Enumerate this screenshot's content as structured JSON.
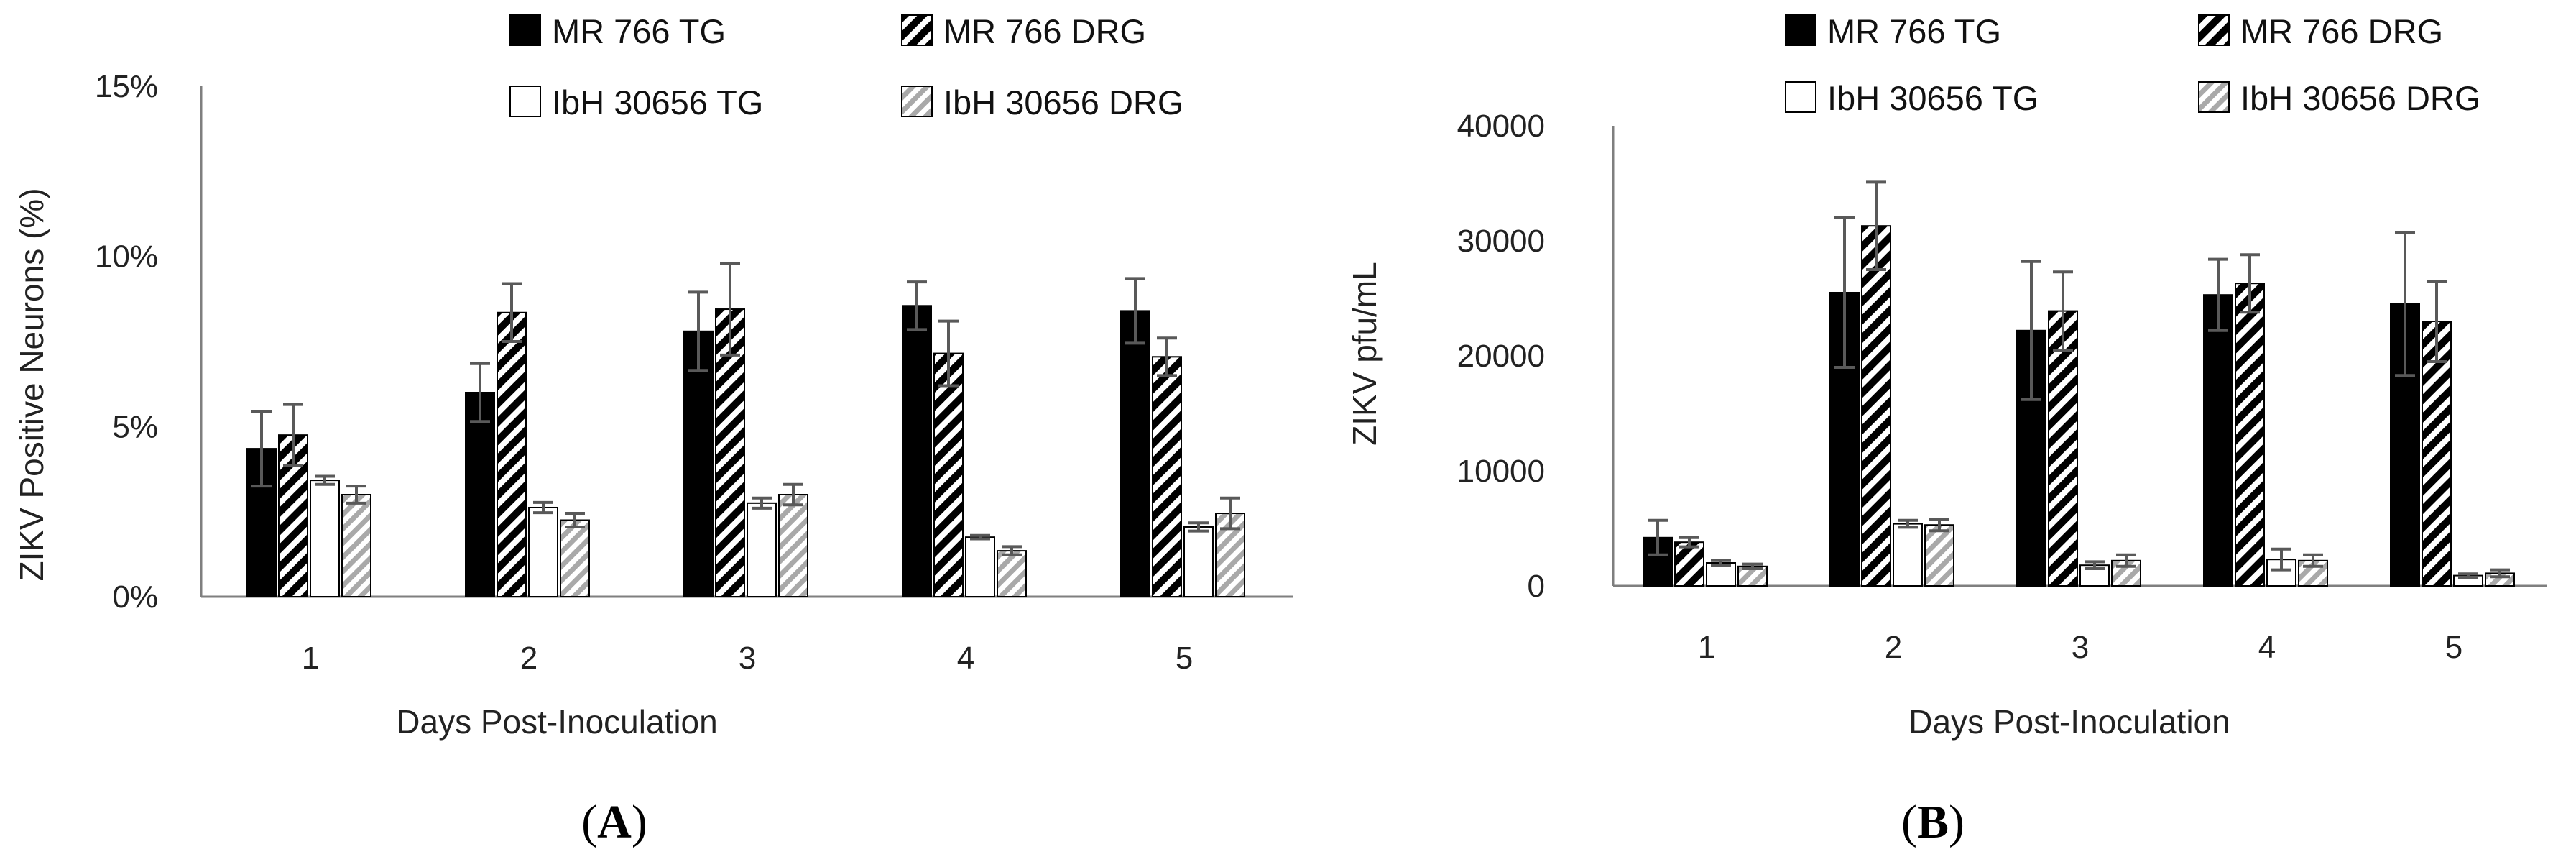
{
  "chart_data": [
    {
      "type": "bar",
      "panel_label": "A",
      "xlabel": "Days Post-Inoculation",
      "ylabel": "ZIKV Positive Neurons (%)",
      "categories": [
        "1",
        "2",
        "3",
        "4",
        "5"
      ],
      "ylim": [
        0,
        15
      ],
      "yticks": [
        0,
        5,
        10,
        15
      ],
      "ytick_labels": [
        "0%",
        "5%",
        "10%",
        "15%"
      ],
      "legend_position": "top",
      "series": [
        {
          "name": "MR 766 TG",
          "pattern": "solid-black",
          "values": [
            4.35,
            6.0,
            7.8,
            8.55,
            8.4
          ],
          "errors": [
            1.1,
            0.85,
            1.15,
            0.7,
            0.95
          ]
        },
        {
          "name": "MR 766 DRG",
          "pattern": "black-diagonal-stripes",
          "values": [
            4.75,
            8.35,
            8.45,
            7.15,
            7.05
          ],
          "errors": [
            0.9,
            0.85,
            1.35,
            0.95,
            0.55
          ]
        },
        {
          "name": "IbH 30656 TG",
          "pattern": "white",
          "values": [
            3.42,
            2.62,
            2.75,
            1.75,
            2.05
          ],
          "errors": [
            0.12,
            0.15,
            0.15,
            0.05,
            0.12
          ]
        },
        {
          "name": "IbH 30656 DRG",
          "pattern": "grey-diagonal-stripes",
          "values": [
            3.0,
            2.25,
            3.0,
            1.35,
            2.45
          ],
          "errors": [
            0.25,
            0.2,
            0.3,
            0.12,
            0.45
          ]
        }
      ]
    },
    {
      "type": "bar",
      "panel_label": "B",
      "xlabel": "Days Post-Inoculation",
      "ylabel": "ZIKV pfu/mL",
      "categories": [
        "1",
        "2",
        "3",
        "4",
        "5"
      ],
      "ylim": [
        0,
        40000
      ],
      "yticks": [
        0,
        10000,
        20000,
        30000,
        40000
      ],
      "ytick_labels": [
        "0",
        "10000",
        "20000",
        "30000",
        "40000"
      ],
      "legend_position": "top",
      "series": [
        {
          "name": "MR 766 TG",
          "pattern": "solid-black",
          "values": [
            4200,
            25500,
            22200,
            25300,
            24500
          ],
          "errors": [
            1500,
            6500,
            6000,
            3100,
            6200
          ]
        },
        {
          "name": "MR 766 DRG",
          "pattern": "black-diagonal-stripes",
          "values": [
            3800,
            31300,
            23900,
            26300,
            23000
          ],
          "errors": [
            400,
            3800,
            3400,
            2500,
            3500
          ]
        },
        {
          "name": "IbH 30656 TG",
          "pattern": "white",
          "values": [
            2000,
            5400,
            1800,
            2300,
            900
          ],
          "errors": [
            200,
            300,
            300,
            900,
            150
          ]
        },
        {
          "name": "IbH 30656 DRG",
          "pattern": "grey-diagonal-stripes",
          "values": [
            1700,
            5300,
            2200,
            2200,
            1100
          ],
          "errors": [
            200,
            500,
            500,
            500,
            300
          ]
        }
      ]
    }
  ]
}
